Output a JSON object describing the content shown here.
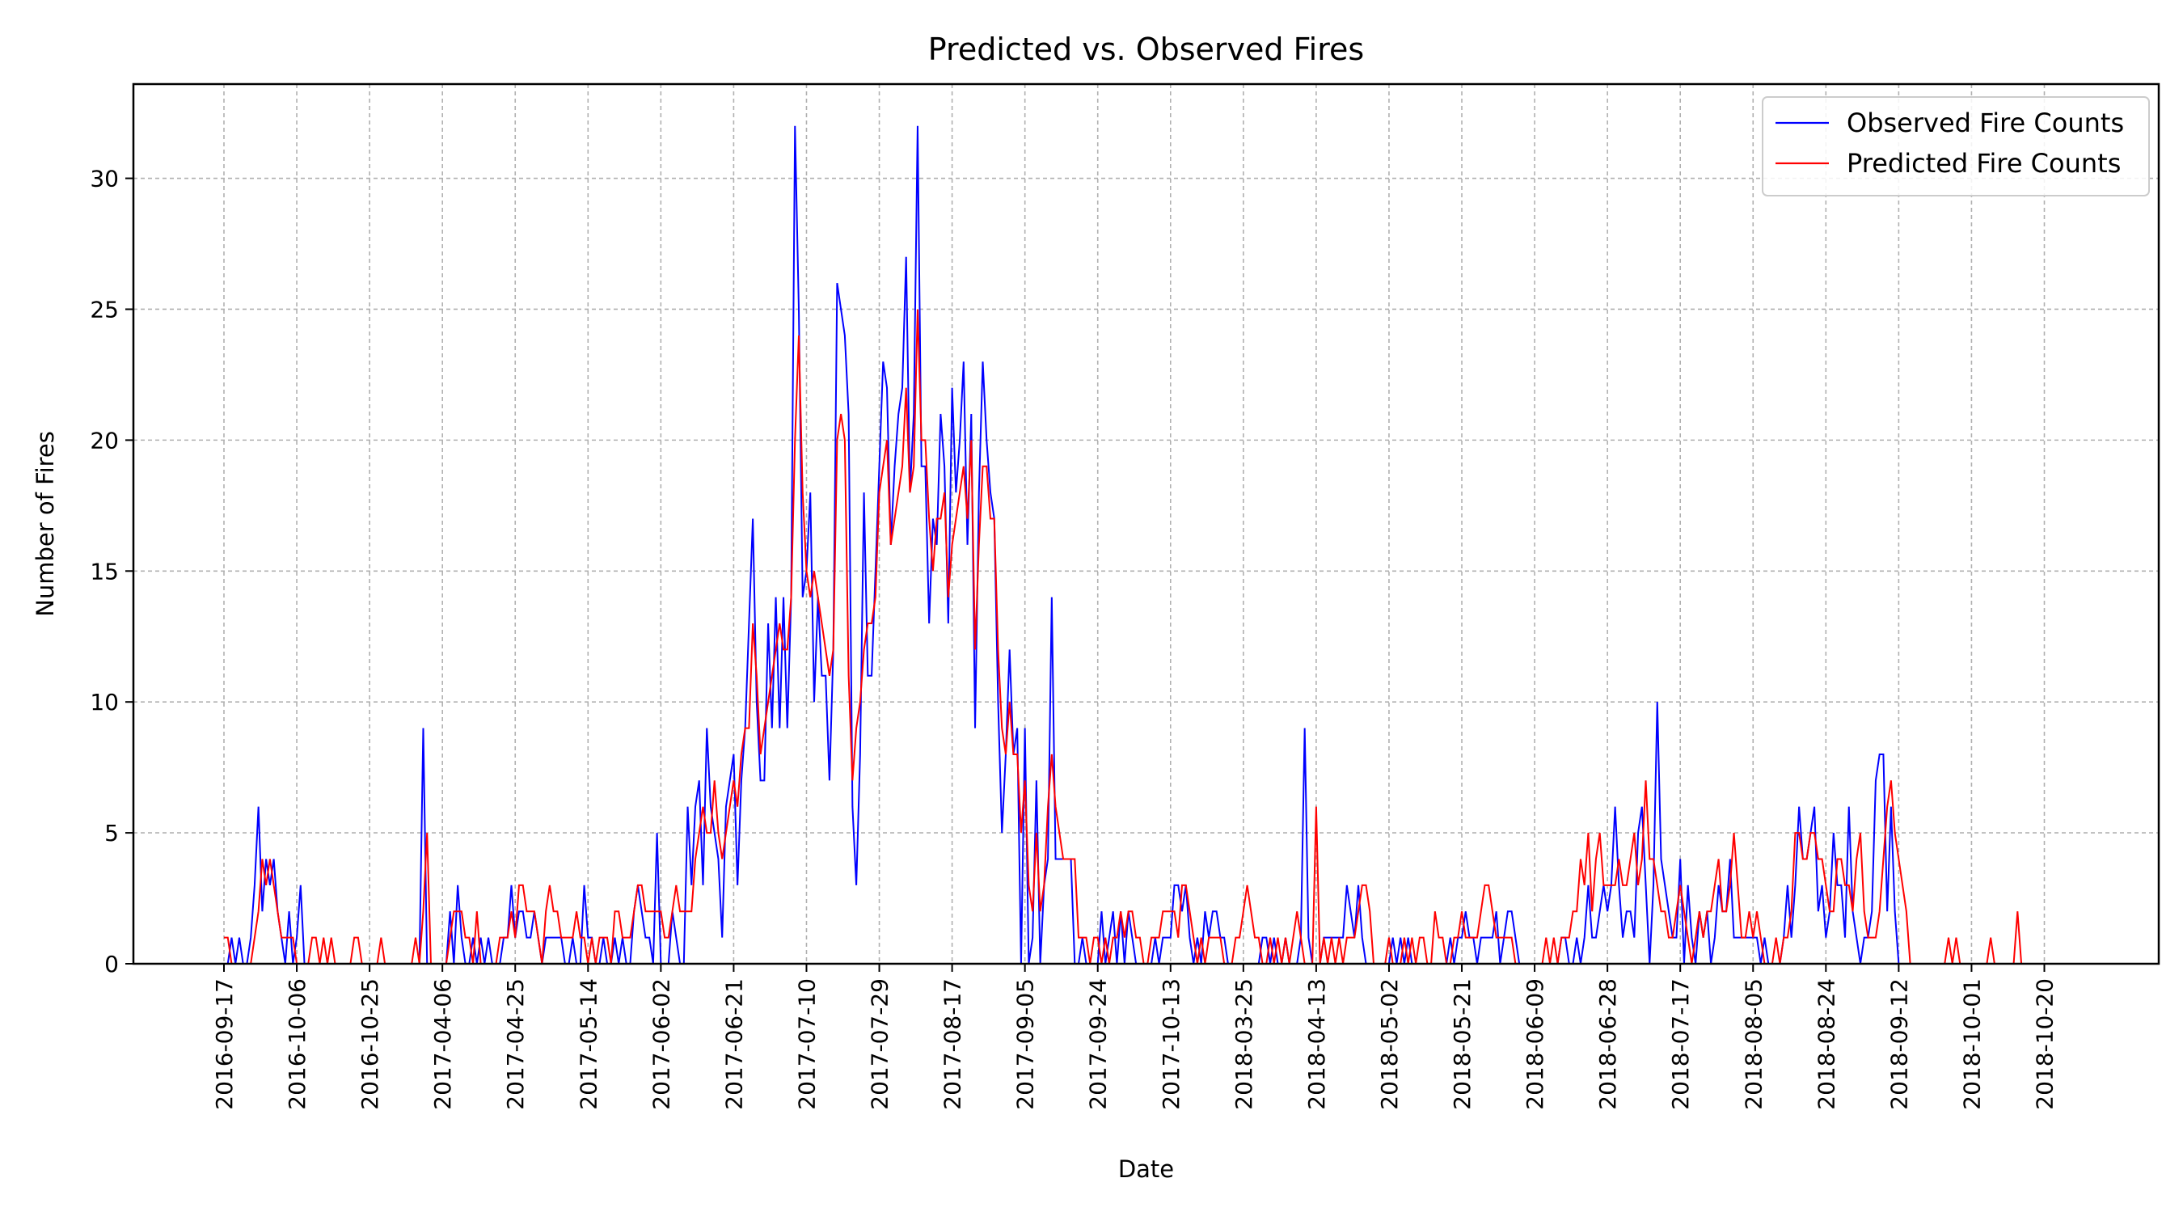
{
  "chart_data": {
    "type": "line",
    "title": "Predicted vs. Observed Fires",
    "xlabel": "Date",
    "ylabel": "Number of Fires",
    "ylim": [
      0,
      33.6
    ],
    "yticks": [
      0,
      5,
      10,
      15,
      20,
      25,
      30
    ],
    "grid": true,
    "legend_position": "top-right",
    "x_tick_labels": [
      "2016-09-17",
      "2016-10-06",
      "2016-10-25",
      "2017-04-06",
      "2017-04-25",
      "2017-05-14",
      "2017-06-02",
      "2017-06-21",
      "2017-07-10",
      "2017-07-29",
      "2017-08-17",
      "2017-09-05",
      "2017-09-24",
      "2017-10-13",
      "2018-03-25",
      "2018-04-13",
      "2018-05-02",
      "2018-05-21",
      "2018-06-09",
      "2018-06-28",
      "2018-07-17",
      "2018-08-05",
      "2018-08-24",
      "2018-09-12",
      "2018-10-01",
      "2018-10-20"
    ],
    "x_note": "Observation index axis; tick labels are placed every 19 observations starting at the first one.",
    "series": [
      {
        "name": "Observed Fire Counts",
        "color": "#0000ff",
        "values": [
          0,
          0,
          1,
          0,
          1,
          0,
          0,
          1,
          3,
          6,
          2,
          4,
          3,
          4,
          2,
          1,
          0,
          2,
          0,
          1,
          3,
          0,
          0,
          0,
          0,
          0,
          0,
          0,
          0,
          0,
          0,
          0,
          0,
          0,
          0,
          0,
          0,
          0,
          0,
          0,
          0,
          0,
          0,
          0,
          0,
          0,
          0,
          0,
          0,
          0,
          0,
          0,
          9,
          0,
          0,
          0,
          0,
          0,
          0,
          2,
          0,
          3,
          1,
          0,
          0,
          1,
          0,
          1,
          0,
          1,
          0,
          0,
          0,
          1,
          1,
          3,
          1,
          2,
          2,
          1,
          1,
          2,
          1,
          0,
          1,
          1,
          1,
          1,
          1,
          0,
          0,
          1,
          0,
          0,
          3,
          1,
          1,
          0,
          0,
          1,
          0,
          0,
          1,
          0,
          1,
          0,
          0,
          2,
          3,
          2,
          1,
          1,
          0,
          5,
          0,
          0,
          0,
          2,
          1,
          0,
          0,
          6,
          3,
          6,
          7,
          3,
          9,
          6,
          5,
          4,
          1,
          6,
          7,
          8,
          3,
          7,
          9,
          13,
          17,
          10,
          7,
          7,
          13,
          9,
          14,
          9,
          14,
          9,
          14,
          32,
          25,
          14,
          15,
          18,
          10,
          14,
          11,
          11,
          7,
          12,
          26,
          25,
          24,
          21,
          6,
          3,
          8,
          18,
          11,
          11,
          15,
          19,
          23,
          22,
          16,
          19,
          21,
          22,
          27,
          18,
          21,
          32,
          19,
          19,
          13,
          17,
          16,
          21,
          19,
          13,
          22,
          18,
          20,
          23,
          16,
          21,
          9,
          18,
          23,
          20,
          18,
          17,
          10,
          5,
          8,
          12,
          8,
          9,
          0,
          9,
          0,
          1,
          7,
          0,
          3,
          4,
          14,
          4,
          4,
          4,
          4,
          4,
          0,
          0,
          1,
          0,
          0,
          0,
          0,
          2,
          0,
          1,
          2,
          0,
          2,
          0,
          2,
          1,
          0,
          0,
          0,
          0,
          0,
          1,
          0,
          1,
          1,
          1,
          3,
          3,
          2,
          3,
          1,
          0,
          1,
          0,
          2,
          1,
          2,
          2,
          1,
          1,
          0,
          0,
          0,
          0,
          0,
          0,
          0,
          0,
          0,
          1,
          1,
          0,
          1,
          0,
          0,
          1,
          0,
          0,
          0,
          1,
          9,
          1,
          0,
          0,
          0,
          1,
          1,
          1,
          1,
          1,
          1,
          3,
          2,
          1,
          3,
          1,
          0,
          0,
          0,
          0,
          0,
          0,
          0,
          1,
          0,
          1,
          0,
          1,
          0,
          0,
          0,
          0,
          0,
          0,
          0,
          0,
          0,
          0,
          1,
          0,
          1,
          1,
          2,
          1,
          1,
          0,
          1,
          1,
          1,
          1,
          2,
          0,
          1,
          2,
          2,
          1,
          0,
          0,
          0,
          0,
          0,
          0,
          0,
          0,
          0,
          0,
          0,
          1,
          1,
          0,
          0,
          1,
          0,
          1,
          3,
          1,
          1,
          2,
          3,
          2,
          3,
          6,
          3,
          1,
          2,
          2,
          1,
          5,
          6,
          3,
          0,
          3,
          10,
          4,
          3,
          2,
          1,
          1,
          4,
          0,
          3,
          1,
          0,
          2,
          1,
          2,
          0,
          1,
          3,
          2,
          2,
          4,
          1,
          1,
          1,
          1,
          1,
          1,
          1,
          0,
          1,
          0,
          0,
          0,
          0,
          1,
          3,
          1,
          3,
          6,
          4,
          4,
          5,
          6,
          2,
          3,
          1,
          2,
          5,
          3,
          3,
          1,
          6,
          2,
          1,
          0,
          1,
          1,
          2,
          7,
          8,
          8,
          2,
          6,
          2,
          0,
          0,
          0,
          0,
          0,
          0,
          0,
          0,
          0,
          0,
          0,
          0,
          0,
          0,
          0,
          0,
          0,
          0,
          0,
          0,
          0,
          0,
          0,
          0,
          0,
          0,
          0,
          0,
          0,
          0,
          0
        ]
      },
      {
        "name": "Predicted Fire Counts",
        "color": "#ff0000",
        "values": [
          1,
          1,
          0,
          0,
          0,
          0,
          0,
          0,
          1,
          2,
          4,
          3,
          4,
          3,
          2,
          1,
          1,
          1,
          1,
          0,
          0,
          0,
          0,
          1,
          1,
          0,
          1,
          0,
          1,
          0,
          0,
          0,
          0,
          0,
          1,
          1,
          0,
          0,
          0,
          0,
          0,
          1,
          0,
          0,
          0,
          0,
          0,
          0,
          0,
          0,
          1,
          0,
          2,
          5,
          0,
          0,
          0,
          0,
          0,
          1,
          2,
          2,
          2,
          1,
          1,
          0,
          2,
          0,
          0,
          0,
          0,
          0,
          1,
          1,
          1,
          2,
          1,
          3,
          3,
          2,
          2,
          2,
          1,
          0,
          2,
          3,
          2,
          2,
          1,
          1,
          1,
          1,
          2,
          1,
          1,
          0,
          1,
          0,
          1,
          1,
          1,
          0,
          2,
          2,
          1,
          1,
          1,
          2,
          3,
          3,
          2,
          2,
          2,
          2,
          2,
          1,
          1,
          2,
          3,
          2,
          2,
          2,
          2,
          4,
          5,
          6,
          5,
          5,
          7,
          5,
          4,
          5,
          6,
          7,
          6,
          8,
          9,
          9,
          13,
          11,
          8,
          9,
          10,
          11,
          12,
          13,
          12,
          12,
          14,
          20,
          24,
          18,
          15,
          14,
          15,
          14,
          13,
          12,
          11,
          12,
          20,
          21,
          20,
          11,
          7,
          9,
          10,
          12,
          13,
          13,
          14,
          18,
          19,
          20,
          16,
          17,
          18,
          19,
          22,
          18,
          19,
          25,
          20,
          20,
          17,
          15,
          17,
          17,
          18,
          14,
          16,
          17,
          18,
          19,
          17,
          20,
          12,
          16,
          19,
          19,
          17,
          17,
          12,
          9,
          8,
          10,
          8,
          8,
          5,
          7,
          3,
          2,
          5,
          2,
          3,
          6,
          8,
          6,
          5,
          4,
          4,
          4,
          4,
          1,
          1,
          1,
          0,
          1,
          1,
          0,
          1,
          0,
          1,
          1,
          2,
          1,
          2,
          2,
          1,
          1,
          0,
          0,
          1,
          1,
          1,
          2,
          2,
          2,
          2,
          1,
          3,
          3,
          2,
          1,
          0,
          1,
          0,
          1,
          1,
          1,
          1,
          0,
          0,
          0,
          1,
          1,
          2,
          3,
          2,
          1,
          1,
          0,
          0,
          1,
          0,
          1,
          0,
          1,
          0,
          1,
          2,
          1,
          0,
          0,
          0,
          6,
          0,
          1,
          0,
          1,
          0,
          1,
          0,
          1,
          1,
          1,
          2,
          3,
          3,
          2,
          0,
          0,
          0,
          0,
          1,
          0,
          0,
          0,
          1,
          0,
          1,
          0,
          1,
          1,
          0,
          0,
          2,
          1,
          1,
          0,
          0,
          1,
          1,
          2,
          1,
          1,
          1,
          1,
          2,
          3,
          3,
          2,
          1,
          1,
          1,
          1,
          1,
          0,
          0,
          0,
          0,
          0,
          0,
          0,
          0,
          1,
          0,
          1,
          0,
          1,
          1,
          1,
          2,
          2,
          4,
          3,
          5,
          2,
          4,
          5,
          3,
          3,
          3,
          3,
          4,
          3,
          3,
          4,
          5,
          3,
          4,
          7,
          4,
          4,
          3,
          2,
          2,
          1,
          1,
          2,
          3,
          2,
          1,
          0,
          1,
          2,
          1,
          2,
          2,
          3,
          4,
          2,
          2,
          3,
          5,
          3,
          1,
          1,
          2,
          1,
          2,
          1,
          0,
          0,
          0,
          1,
          0,
          1,
          1,
          2,
          5,
          5,
          4,
          4,
          5,
          5,
          4,
          4,
          3,
          2,
          2,
          4,
          4,
          3,
          3,
          2,
          4,
          5,
          2,
          1,
          1,
          1,
          2,
          4,
          6,
          7,
          5,
          4,
          3,
          2,
          0,
          0,
          0,
          0,
          0,
          0,
          0,
          0,
          0,
          0,
          1,
          0,
          1,
          0,
          0,
          0,
          0,
          0,
          0,
          0,
          0,
          1,
          0,
          0,
          0,
          0,
          0,
          0,
          2,
          0,
          0,
          0,
          0
        ]
      }
    ]
  }
}
